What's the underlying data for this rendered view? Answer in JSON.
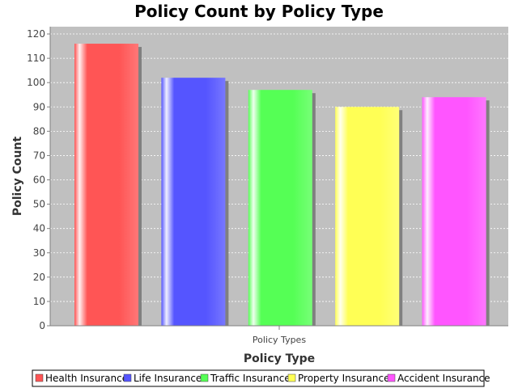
{
  "chart_data": {
    "type": "bar",
    "title": "Policy Count by Policy Type",
    "xlabel": "Policy Type",
    "ylabel": "Policy Count",
    "category_label": "Policy Types",
    "ylim": [
      0,
      123
    ],
    "yticks": [
      0,
      10,
      20,
      30,
      40,
      50,
      60,
      70,
      80,
      90,
      100,
      110,
      120
    ],
    "grid": true,
    "legend_position": "bottom",
    "background_color": "#c0c0c0",
    "series": [
      {
        "name": "Health Insurance",
        "value": 116,
        "color": "#ff5555"
      },
      {
        "name": "Life Insurance",
        "value": 102,
        "color": "#5555ff"
      },
      {
        "name": "Traffic Insurance",
        "value": 97,
        "color": "#55ff55"
      },
      {
        "name": "Property Insurance",
        "value": 90,
        "color": "#ffff55"
      },
      {
        "name": "Accident Insurance",
        "value": 94,
        "color": "#ff55ff"
      }
    ]
  }
}
